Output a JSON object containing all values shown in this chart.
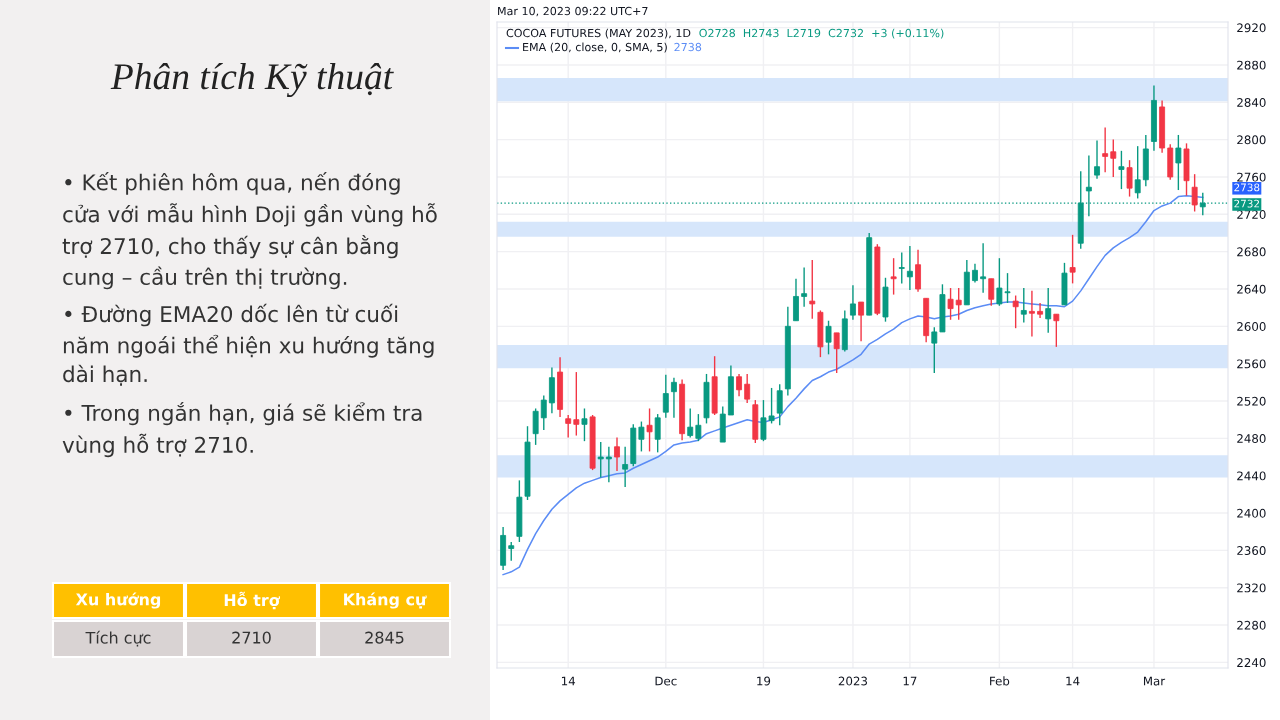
{
  "chart_data": [
    {
      "type": "other",
      "title": "Phân tích Kỹ thuật",
      "annotations": [
        "• Kết phiên hôm qua, nến đóng cửa với mẫu hình Doji gần vùng hỗ trợ 2710, cho thấy sự cân bằng cung – cầu trên thị trường.",
        "• Đường EMA20 dốc lên từ cuối năm ngoái thể hiện xu hướng tăng dài hạn.",
        "• Trong ngắn hạn, giá sẽ kiểm tra vùng hỗ trợ 2710.",
        "Xu hướng",
        "Hỗ trợ",
        "Kháng cự",
        "Tích cực",
        "2710",
        "2845"
      ]
    },
    {
      "type": "candlestick",
      "title": "COCOA FUTURES (MAY 2023), 1D",
      "subtitle": "Mar 10, 2023 09:22 UTC+7",
      "categories": [
        null,
        null,
        null,
        null,
        null,
        null,
        null,
        null,
        "14",
        null,
        null,
        null,
        null,
        null,
        null,
        null,
        null,
        null,
        null,
        null,
        "Dec",
        null,
        null,
        null,
        null,
        null,
        null,
        null,
        null,
        null,
        null,
        null,
        "19",
        null,
        null,
        null,
        null,
        null,
        null,
        null,
        null,
        null,
        null,
        "2023",
        null,
        null,
        null,
        null,
        null,
        null,
        "17",
        null,
        null,
        null,
        null,
        null,
        null,
        null,
        null,
        null,
        null,
        "Feb",
        null,
        null,
        null,
        null,
        null,
        null,
        null,
        null,
        "14",
        null,
        null,
        null,
        null,
        null,
        null,
        null,
        null,
        null,
        "Mar",
        null,
        null,
        null,
        null,
        null,
        null
      ],
      "colors": [
        "#089981",
        "#089981",
        "#089981",
        "#089981",
        "#089981",
        "#089981",
        "#089981",
        "#f23645",
        "#f23645",
        "#f23645",
        "#089981",
        "#f23645",
        "#089981",
        "#089981",
        "#f23645",
        "#089981",
        "#089981",
        "#089981",
        "#f23645",
        "#089981",
        "#089981",
        "#089981",
        "#f23645",
        "#089981",
        "#089981",
        "#089981",
        "#f23645",
        "#089981",
        "#089981",
        "#f23645",
        "#f23645",
        "#f23645",
        "#089981",
        "#089981",
        "#089981",
        "#089981",
        "#089981",
        "#089981",
        "#f23645",
        "#f23645",
        "#089981",
        "#f23645",
        "#089981",
        "#089981",
        "#f23645",
        "#089981",
        "#f23645",
        "#089981",
        "#f23645",
        "#089981",
        "#089981",
        "#f23645",
        "#f23645",
        "#089981",
        "#089981",
        "#f23645",
        "#f23645",
        "#089981",
        "#089981",
        "#089981",
        "#f23645",
        "#089981",
        "#089981",
        "#f23645",
        "#089981",
        "#f23645",
        "#f23645",
        "#089981",
        "#f23645",
        "#089981",
        "#f23645",
        "#089981",
        "#089981",
        "#089981",
        "#f23645",
        "#f23645",
        "#089981",
        "#f23645",
        "#089981",
        "#089981",
        "#089981",
        "#f23645",
        "#f23645",
        "#089981",
        "#f23645",
        "#f23645",
        "#089981"
      ],
      "ohlc": [
        [
          2344,
          2385,
          2339,
          2376
        ],
        [
          2362,
          2369,
          2349,
          2365
        ],
        [
          2375,
          2435,
          2369,
          2417
        ],
        [
          2418,
          2493,
          2414,
          2476
        ],
        [
          2485,
          2512,
          2473,
          2509
        ],
        [
          2502,
          2526,
          2489,
          2521
        ],
        [
          2518,
          2556,
          2507,
          2545
        ],
        [
          2551,
          2567,
          2503,
          2511
        ],
        [
          2501,
          2505,
          2481,
          2496
        ],
        [
          2500,
          2551,
          2483,
          2495
        ],
        [
          2495,
          2512,
          2477,
          2501
        ],
        [
          2503,
          2505,
          2446,
          2448
        ],
        [
          2458,
          2476,
          2438,
          2460
        ],
        [
          2458,
          2471,
          2433,
          2460
        ],
        [
          2471,
          2481,
          2445,
          2460
        ],
        [
          2447,
          2471,
          2428,
          2452
        ],
        [
          2453,
          2495,
          2450,
          2491
        ],
        [
          2479,
          2498,
          2466,
          2492
        ],
        [
          2494,
          2512,
          2466,
          2487
        ],
        [
          2479,
          2506,
          2465,
          2502
        ],
        [
          2508,
          2548,
          2502,
          2528
        ],
        [
          2530,
          2545,
          2502,
          2540
        ],
        [
          2538,
          2543,
          2478,
          2485
        ],
        [
          2483,
          2512,
          2481,
          2492
        ],
        [
          2480,
          2506,
          2477,
          2494
        ],
        [
          2502,
          2549,
          2496,
          2540
        ],
        [
          2546,
          2568,
          2505,
          2507
        ],
        [
          2476,
          2514,
          2476,
          2506
        ],
        [
          2505,
          2558,
          2505,
          2546
        ],
        [
          2546,
          2549,
          2525,
          2532
        ],
        [
          2538,
          2549,
          2518,
          2522
        ],
        [
          2516,
          2521,
          2475,
          2479
        ],
        [
          2479,
          2521,
          2477,
          2502
        ],
        [
          2499,
          2534,
          2496,
          2504
        ],
        [
          2507,
          2538,
          2494,
          2531
        ],
        [
          2533,
          2621,
          2526,
          2600
        ],
        [
          2606,
          2651,
          2606,
          2632
        ],
        [
          2632,
          2663,
          2621,
          2635
        ],
        [
          2627,
          2671,
          2608,
          2624
        ],
        [
          2615,
          2617,
          2567,
          2578
        ],
        [
          2583,
          2606,
          2570,
          2600
        ],
        [
          2593,
          2593,
          2550,
          2576
        ],
        [
          2575,
          2617,
          2573,
          2608
        ],
        [
          2612,
          2644,
          2607,
          2624
        ],
        [
          2626,
          2626,
          2584,
          2612
        ],
        [
          2612,
          2700,
          2612,
          2695
        ],
        [
          2685,
          2688,
          2612,
          2614
        ],
        [
          2610,
          2652,
          2605,
          2642
        ],
        [
          2653,
          2673,
          2634,
          2651
        ],
        [
          2662,
          2679,
          2646,
          2663
        ],
        [
          2653,
          2686,
          2639,
          2659
        ],
        [
          2666,
          2682,
          2637,
          2640
        ],
        [
          2630,
          2630,
          2583,
          2590
        ],
        [
          2582,
          2599,
          2550,
          2594
        ],
        [
          2594,
          2645,
          2594,
          2634
        ],
        [
          2629,
          2641,
          2607,
          2619
        ],
        [
          2628,
          2641,
          2607,
          2623
        ],
        [
          2623,
          2671,
          2623,
          2658
        ],
        [
          2649,
          2667,
          2647,
          2660
        ],
        [
          2651,
          2689,
          2636,
          2653
        ],
        [
          2651,
          2651,
          2622,
          2629
        ],
        [
          2624,
          2673,
          2622,
          2641
        ],
        [
          2636,
          2657,
          2625,
          2637
        ],
        [
          2627,
          2633,
          2598,
          2621
        ],
        [
          2613,
          2641,
          2604,
          2617
        ],
        [
          2616,
          2638,
          2589,
          2614
        ],
        [
          2616,
          2625,
          2609,
          2613
        ],
        [
          2608,
          2641,
          2593,
          2619
        ],
        [
          2613,
          2613,
          2578,
          2606
        ],
        [
          2623,
          2668,
          2623,
          2657
        ],
        [
          2663,
          2698,
          2646,
          2658
        ],
        [
          2689,
          2766,
          2683,
          2732
        ],
        [
          2745,
          2783,
          2718,
          2749
        ],
        [
          2762,
          2799,
          2758,
          2771
        ],
        [
          2785,
          2813,
          2765,
          2782
        ],
        [
          2787,
          2800,
          2760,
          2780
        ],
        [
          2768,
          2788,
          2747,
          2771
        ],
        [
          2770,
          2778,
          2739,
          2748
        ],
        [
          2743,
          2793,
          2737,
          2757
        ],
        [
          2757,
          2805,
          2750,
          2790
        ],
        [
          2798,
          2858,
          2788,
          2842
        ],
        [
          2835,
          2842,
          2786,
          2791
        ],
        [
          2791,
          2795,
          2757,
          2760
        ],
        [
          2775,
          2805,
          2746,
          2791
        ],
        [
          2790,
          2796,
          2740,
          2756
        ],
        [
          2749,
          2763,
          2723,
          2730
        ],
        [
          2728,
          2743,
          2719,
          2732
        ]
      ],
      "series": [
        {
          "name": "EMA (20, close, 0, SMA, 5)",
          "type": "line",
          "color": "#5b8cf5",
          "values": [
            2334,
            2337,
            2342,
            2361,
            2378,
            2392,
            2404,
            2413,
            2420,
            2427,
            2432,
            2435,
            2438,
            2440,
            2442,
            2443,
            2448,
            2452,
            2456,
            2460,
            2466,
            2473,
            2475,
            2476,
            2478,
            2485,
            2488,
            2491,
            2494,
            2497,
            2500,
            2498,
            2497,
            2500,
            2503,
            2514,
            2523,
            2533,
            2542,
            2546,
            2551,
            2554,
            2559,
            2564,
            2570,
            2581,
            2586,
            2592,
            2597,
            2604,
            2608,
            2611,
            2610,
            2608,
            2610,
            2611,
            2613,
            2617,
            2620,
            2622,
            2624,
            2625,
            2626,
            2626,
            2625,
            2624,
            2623,
            2622,
            2622,
            2621,
            2627,
            2638,
            2651,
            2664,
            2676,
            2684,
            2690,
            2695,
            2701,
            2712,
            2724,
            2729,
            2732,
            2739,
            2740,
            2739,
            2738
          ]
        }
      ],
      "ylim": [
        2234,
        2926
      ],
      "yticks": [
        2240,
        2280,
        2320,
        2360,
        2400,
        2440,
        2480,
        2520,
        2560,
        2600,
        2640,
        2680,
        2720,
        2760,
        2800,
        2840,
        2880,
        2920
      ],
      "bands": [
        {
          "axis": "y",
          "from": 2841,
          "to": 2866,
          "color": "#d6e6fb"
        },
        {
          "axis": "y",
          "from": 2696,
          "to": 2712,
          "color": "#d6e6fb"
        },
        {
          "axis": "y",
          "from": 2555,
          "to": 2580,
          "color": "#d6e6fb"
        },
        {
          "axis": "y",
          "from": 2438,
          "to": 2462,
          "color": "#d6e6fb"
        }
      ],
      "ref_lines": [
        {
          "axis": "y",
          "value": 2732,
          "label": "2732",
          "color": "#089981",
          "line_style": "dotted"
        }
      ],
      "annotations": [
        "O2728  H2743  L2719  C2732  +3 (+0.11%)",
        "2738"
      ],
      "grid": true,
      "legend": "top left"
    }
  ]
}
